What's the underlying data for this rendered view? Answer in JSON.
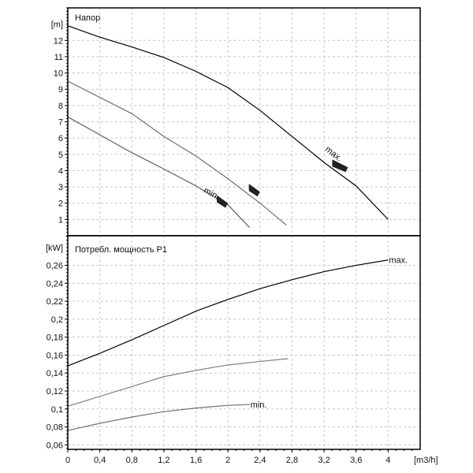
{
  "chart_data": [
    {
      "type": "line",
      "title": "Напор",
      "ylabel": "[m]",
      "xlabel": "[m3/h]",
      "xlim": [
        0,
        4.4
      ],
      "ylim": [
        0,
        14
      ],
      "yticks": [
        "1",
        "2",
        "3",
        "4",
        "5",
        "6",
        "7",
        "8",
        "9",
        "10",
        "11",
        "12"
      ],
      "grid": true,
      "series": [
        {
          "name": "max",
          "label": "max.",
          "color": "#000000",
          "x": [
            0,
            0.4,
            0.8,
            1.2,
            1.6,
            2,
            2.4,
            2.8,
            3.2,
            3.6,
            4
          ],
          "y": [
            12.9,
            12.2,
            11.6,
            10.95,
            10.1,
            9.1,
            7.7,
            6.1,
            4.5,
            3.06,
            1.0
          ]
        },
        {
          "name": "mid",
          "label": "",
          "color": "#707070",
          "x": [
            0,
            0.4,
            0.8,
            1.2,
            1.6,
            2,
            2.4,
            2.73
          ],
          "y": [
            9.5,
            8.5,
            7.5,
            6.1,
            4.9,
            3.5,
            2.0,
            0.65
          ]
        },
        {
          "name": "min",
          "label": "min.",
          "color": "#606060",
          "x": [
            0,
            0.4,
            0.8,
            1.2,
            1.6,
            2,
            2.27
          ],
          "y": [
            7.3,
            6.2,
            5.1,
            4.1,
            3.06,
            1.9,
            0.5
          ]
        }
      ],
      "markers": [
        {
          "x": 3.4,
          "y": 4.3
        },
        {
          "x": 2.33,
          "y": 2.8
        },
        {
          "x": 1.93,
          "y": 2.1
        }
      ]
    },
    {
      "type": "line",
      "title": "Потребл. мощность P1",
      "ylabel": "[kW]",
      "xlabel": "[m3/h]",
      "xlim": [
        0,
        4.4
      ],
      "ylim": [
        0.055,
        0.293
      ],
      "yticks": [
        "0,06",
        "0,08",
        "0,1",
        "0,12",
        "0,14",
        "0,16",
        "0,18",
        "0,2",
        "0,22",
        "0,24",
        "0,26"
      ],
      "xticks": [
        "0",
        "0,4",
        "0,8",
        "1,2",
        "1,6",
        "2",
        "2,4",
        "2,8",
        "3,2",
        "3,6",
        "4"
      ],
      "grid": true,
      "series": [
        {
          "name": "max",
          "label": "max.",
          "color": "#000000",
          "x": [
            0,
            0.4,
            0.8,
            1.2,
            1.6,
            2,
            2.4,
            2.8,
            3.2,
            3.6,
            4
          ],
          "y": [
            0.148,
            0.162,
            0.177,
            0.193,
            0.209,
            0.222,
            0.234,
            0.244,
            0.253,
            0.26,
            0.266
          ]
        },
        {
          "name": "mid",
          "label": "",
          "color": "#808080",
          "x": [
            0,
            0.4,
            0.8,
            1.2,
            1.6,
            2,
            2.4,
            2.75
          ],
          "y": [
            0.103,
            0.114,
            0.125,
            0.136,
            0.143,
            0.149,
            0.153,
            0.156
          ]
        },
        {
          "name": "min",
          "label": "min.",
          "color": "#707070",
          "x": [
            0,
            0.4,
            0.8,
            1.2,
            1.6,
            2,
            2.27
          ],
          "y": [
            0.076,
            0.084,
            0.091,
            0.097,
            0.101,
            0.104,
            0.105
          ]
        }
      ]
    }
  ]
}
